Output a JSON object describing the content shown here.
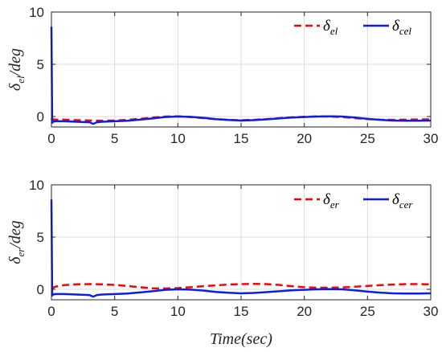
{
  "chart_data": [
    {
      "type": "line",
      "x_tick_labels": [
        "0",
        "5",
        "10",
        "15",
        "20",
        "25",
        "30"
      ],
      "y_tick_labels": [
        "0",
        "5",
        "10"
      ],
      "xlim": [
        0,
        30
      ],
      "ylim": [
        -1,
        10
      ],
      "xticks": [
        0,
        5,
        10,
        15,
        20,
        25,
        30
      ],
      "yticks": [
        0,
        5,
        10
      ],
      "ylabel": {
        "base": "δ",
        "sub": "el",
        "rest": "/deg"
      },
      "grid": true,
      "legend": "top-right",
      "series": [
        {
          "name": {
            "base": "δ",
            "sub": "el"
          },
          "color": "#ff0000",
          "dash": "dashed",
          "x": [
            0,
            0.02,
            0.3,
            1,
            2,
            3,
            4,
            5,
            6,
            7,
            8,
            9,
            10,
            11,
            12,
            13,
            14,
            15,
            16,
            17,
            18,
            19,
            20,
            21,
            22,
            23,
            24,
            25,
            26,
            27,
            28,
            29,
            30
          ],
          "y": [
            -0.2,
            -0.25,
            -0.3,
            -0.3,
            -0.35,
            -0.38,
            -0.4,
            -0.38,
            -0.32,
            -0.22,
            -0.1,
            0.0,
            0.02,
            -0.05,
            -0.15,
            -0.25,
            -0.32,
            -0.35,
            -0.32,
            -0.25,
            -0.15,
            -0.08,
            -0.02,
            0.01,
            0.0,
            -0.05,
            -0.15,
            -0.25,
            -0.3,
            -0.32,
            -0.3,
            -0.28,
            -0.27
          ]
        },
        {
          "name": {
            "base": "δ",
            "sub": "cel"
          },
          "color": "#0a1ee6",
          "dash": "solid",
          "x": [
            0,
            0.03,
            0.06,
            0.12,
            0.3,
            1,
            2,
            3,
            3.3,
            3.6,
            4,
            5,
            6,
            7,
            8,
            9,
            10,
            11,
            12,
            13,
            14,
            15,
            16,
            17,
            18,
            19,
            20,
            21,
            22,
            23,
            24,
            25,
            26,
            27,
            28,
            29,
            30
          ],
          "y": [
            8.6,
            4.0,
            -0.6,
            -0.5,
            -0.45,
            -0.45,
            -0.5,
            -0.55,
            -0.7,
            -0.55,
            -0.5,
            -0.45,
            -0.4,
            -0.3,
            -0.18,
            -0.05,
            0.0,
            -0.03,
            -0.12,
            -0.25,
            -0.33,
            -0.38,
            -0.35,
            -0.27,
            -0.18,
            -0.1,
            -0.05,
            0.0,
            0.02,
            0.0,
            -0.1,
            -0.22,
            -0.32,
            -0.38,
            -0.4,
            -0.4,
            -0.38
          ]
        }
      ]
    },
    {
      "type": "line",
      "x_tick_labels": [
        "0",
        "5",
        "10",
        "15",
        "20",
        "25",
        "30"
      ],
      "y_tick_labels": [
        "0",
        "5",
        "10"
      ],
      "xlim": [
        0,
        30
      ],
      "ylim": [
        -1,
        10
      ],
      "xticks": [
        0,
        5,
        10,
        15,
        20,
        25,
        30
      ],
      "yticks": [
        0,
        5,
        10
      ],
      "ylabel": {
        "base": "δ",
        "sub": "er",
        "rest": "/deg"
      },
      "xlabel": "Time(sec)",
      "grid": true,
      "legend": "top-right",
      "series": [
        {
          "name": {
            "base": "δ",
            "sub": "er"
          },
          "color": "#ff0000",
          "dash": "dashed",
          "x": [
            0,
            0.3,
            1,
            2,
            3,
            4,
            5,
            6,
            7,
            8,
            9,
            10,
            11,
            12,
            13,
            14,
            15,
            16,
            17,
            18,
            19,
            20,
            21,
            22,
            23,
            24,
            25,
            26,
            27,
            28,
            29,
            30
          ],
          "y": [
            0.05,
            0.25,
            0.4,
            0.48,
            0.5,
            0.48,
            0.42,
            0.32,
            0.2,
            0.1,
            0.08,
            0.12,
            0.2,
            0.3,
            0.38,
            0.45,
            0.5,
            0.52,
            0.5,
            0.42,
            0.3,
            0.2,
            0.15,
            0.15,
            0.18,
            0.25,
            0.32,
            0.4,
            0.45,
            0.5,
            0.5,
            0.48
          ]
        },
        {
          "name": {
            "base": "δ",
            "sub": "cer"
          },
          "color": "#0a1ee6",
          "dash": "solid",
          "x": [
            0,
            0.03,
            0.06,
            0.12,
            0.3,
            1,
            2,
            3,
            3.3,
            3.6,
            4,
            5,
            6,
            7,
            8,
            9,
            10,
            11,
            12,
            13,
            14,
            15,
            16,
            17,
            18,
            19,
            20,
            21,
            22,
            23,
            24,
            25,
            26,
            27,
            28,
            29,
            30
          ],
          "y": [
            8.6,
            4.0,
            -0.6,
            -0.5,
            -0.45,
            -0.45,
            -0.5,
            -0.55,
            -0.7,
            -0.55,
            -0.5,
            -0.45,
            -0.4,
            -0.3,
            -0.18,
            -0.05,
            0.0,
            -0.03,
            -0.12,
            -0.25,
            -0.33,
            -0.38,
            -0.35,
            -0.27,
            -0.18,
            -0.1,
            -0.05,
            0.0,
            0.02,
            0.0,
            -0.1,
            -0.22,
            -0.32,
            -0.38,
            -0.4,
            -0.4,
            -0.38
          ]
        }
      ]
    }
  ],
  "style": {
    "axis_color": "#262626",
    "grid_color": "#dcdcdc"
  }
}
